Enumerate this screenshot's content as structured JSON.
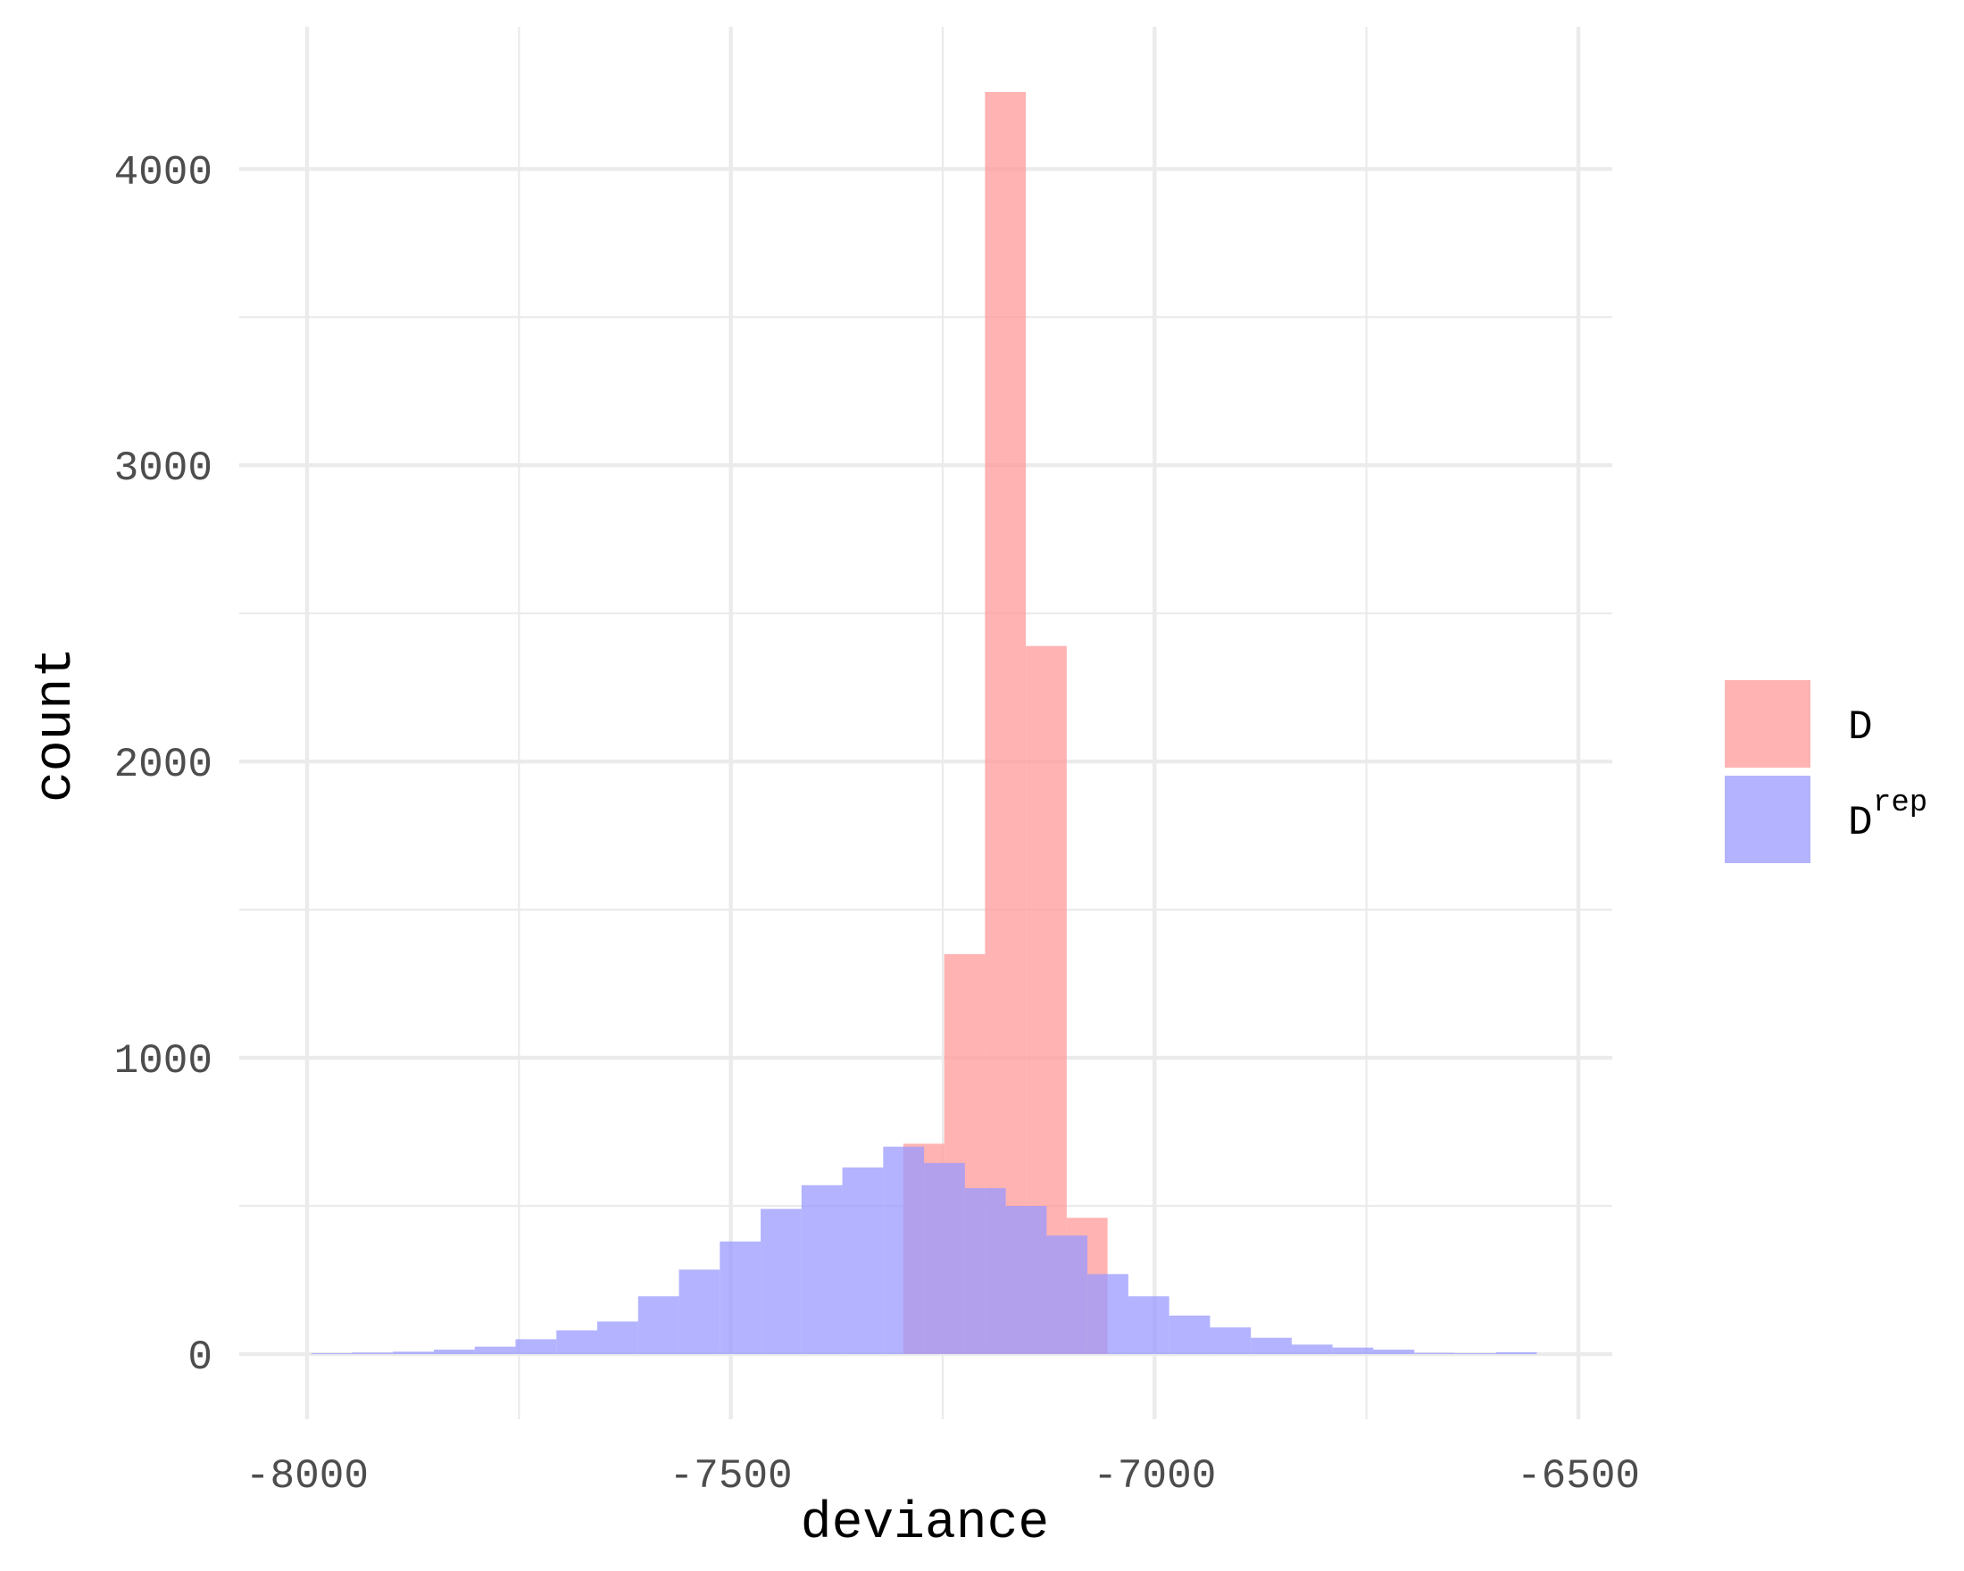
{
  "chart_data": {
    "type": "histogram",
    "title": "",
    "xlabel": "deviance",
    "ylabel": "count",
    "xlim": [
      -8080,
      -6460
    ],
    "ylim": [
      -220,
      4480
    ],
    "x_ticks": [
      -8000,
      -7500,
      -7000,
      -6500
    ],
    "x_tick_labels": [
      "-8000",
      "-7500",
      "-7000",
      "-6500"
    ],
    "y_ticks": [
      0,
      1000,
      2000,
      3000,
      4000
    ],
    "y_tick_labels": [
      "0",
      "1000",
      "2000",
      "3000",
      "4000"
    ],
    "x_minor_ticks": [
      -7750,
      -7250,
      -6750
    ],
    "y_minor_ticks": [
      500,
      1500,
      2500,
      3500
    ],
    "grid": true,
    "legend_position": "right",
    "bin_width": 48.2,
    "series": [
      {
        "name": "D",
        "color": "#ff9999",
        "bins": [
          {
            "x0": -7296.5,
            "x1": -7248.3,
            "count": 710
          },
          {
            "x0": -7248.3,
            "x1": -7200.1,
            "count": 1350
          },
          {
            "x0": -7200.1,
            "x1": -7151.9,
            "count": 4260
          },
          {
            "x0": -7151.9,
            "x1": -7103.7,
            "count": 2390
          },
          {
            "x0": -7103.7,
            "x1": -7055.5,
            "count": 460
          }
        ]
      },
      {
        "name": "D",
        "name_superscript": "rep",
        "color": "#9999ff",
        "bins": [
          {
            "x0": -7995,
            "x1": -7946.8,
            "count": 3
          },
          {
            "x0": -7946.8,
            "x1": -7898.6,
            "count": 5
          },
          {
            "x0": -7898.6,
            "x1": -7850.4,
            "count": 8
          },
          {
            "x0": -7850.4,
            "x1": -7802.2,
            "count": 15
          },
          {
            "x0": -7802.2,
            "x1": -7754,
            "count": 25
          },
          {
            "x0": -7754,
            "x1": -7705.8,
            "count": 50
          },
          {
            "x0": -7705.8,
            "x1": -7657.6,
            "count": 80
          },
          {
            "x0": -7657.6,
            "x1": -7609.4,
            "count": 110
          },
          {
            "x0": -7609.4,
            "x1": -7561.2,
            "count": 195
          },
          {
            "x0": -7561.2,
            "x1": -7513,
            "count": 285
          },
          {
            "x0": -7513,
            "x1": -7464.8,
            "count": 380
          },
          {
            "x0": -7464.8,
            "x1": -7416.6,
            "count": 490
          },
          {
            "x0": -7416.6,
            "x1": -7368.4,
            "count": 570
          },
          {
            "x0": -7368.4,
            "x1": -7320.2,
            "count": 630
          },
          {
            "x0": -7320.2,
            "x1": -7272,
            "count": 700
          },
          {
            "x0": -7272,
            "x1": -7223.8,
            "count": 645
          },
          {
            "x0": -7223.8,
            "x1": -7175.6,
            "count": 560
          },
          {
            "x0": -7175.6,
            "x1": -7127.4,
            "count": 500
          },
          {
            "x0": -7127.4,
            "x1": -7079.2,
            "count": 400
          },
          {
            "x0": -7079.2,
            "x1": -7031,
            "count": 270
          },
          {
            "x0": -7031,
            "x1": -6982.8,
            "count": 195
          },
          {
            "x0": -6982.8,
            "x1": -6934.6,
            "count": 130
          },
          {
            "x0": -6934.6,
            "x1": -6886.4,
            "count": 90
          },
          {
            "x0": -6886.4,
            "x1": -6838.2,
            "count": 55
          },
          {
            "x0": -6838.2,
            "x1": -6790,
            "count": 32
          },
          {
            "x0": -6790,
            "x1": -6741.8,
            "count": 22
          },
          {
            "x0": -6741.8,
            "x1": -6693.6,
            "count": 15
          },
          {
            "x0": -6693.6,
            "x1": -6645.4,
            "count": 4
          },
          {
            "x0": -6645.4,
            "x1": -6597.2,
            "count": 3
          },
          {
            "x0": -6597.2,
            "x1": -6549,
            "count": 6
          }
        ]
      }
    ]
  }
}
